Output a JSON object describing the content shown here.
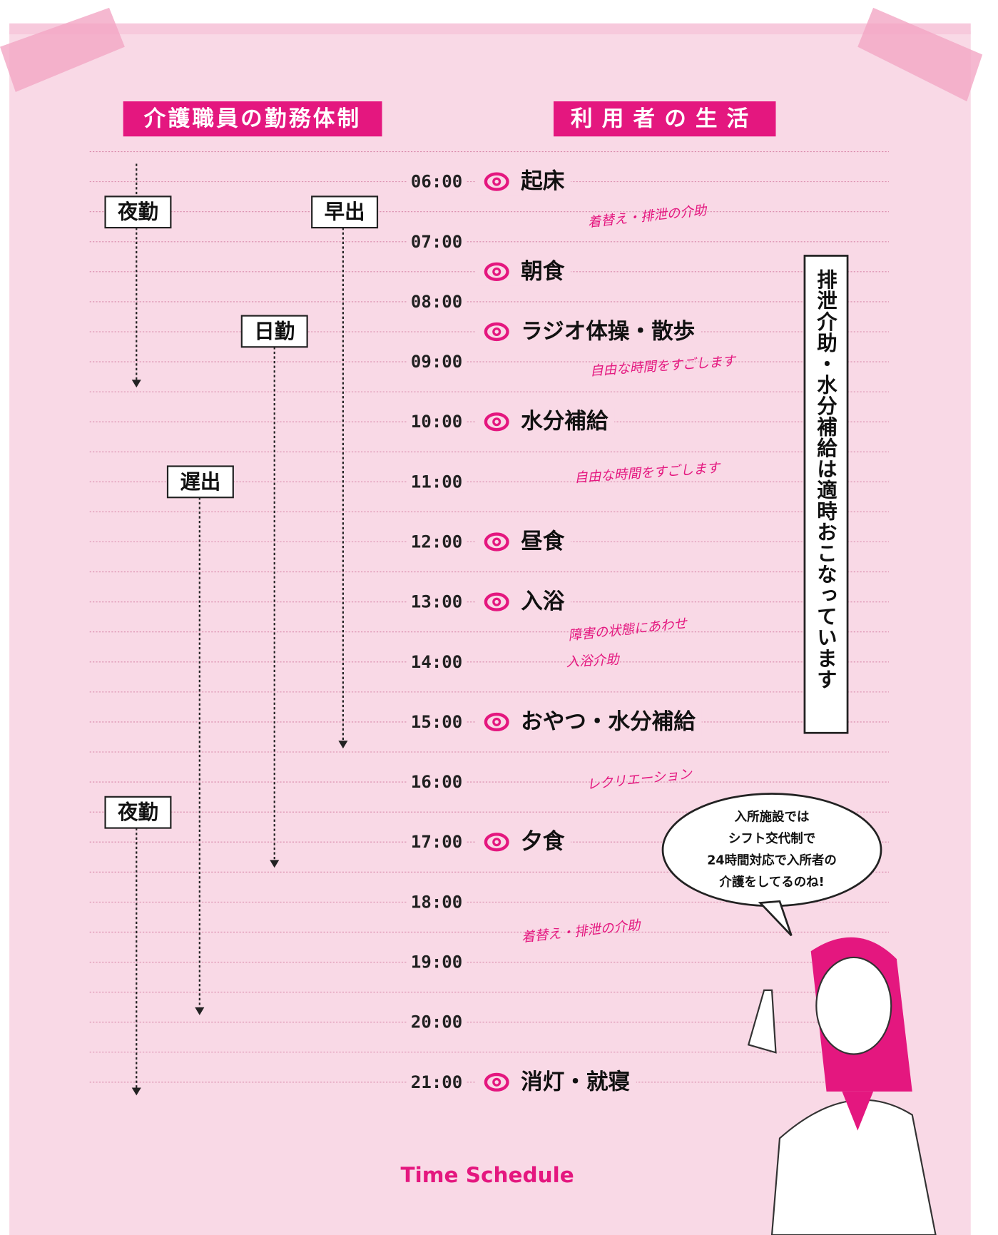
{
  "headers": {
    "staff": "介護職員の勤務体制",
    "residents": "利用者の生活"
  },
  "times": [
    "06:00",
    "07:00",
    "08:00",
    "09:00",
    "10:00",
    "11:00",
    "12:00",
    "13:00",
    "14:00",
    "15:00",
    "16:00",
    "17:00",
    "18:00",
    "19:00",
    "20:00",
    "21:00"
  ],
  "shifts": [
    "夜勤",
    "早出",
    "日勤",
    "遅出",
    "夜勤"
  ],
  "events": [
    "起床",
    "朝食",
    "ラジオ体操・散歩",
    "水分補給",
    "昼食",
    "入浴",
    "おやつ・水分補給",
    "夕食",
    "消灯・就寝"
  ],
  "notes": [
    "着替え・排泄の介助",
    "自由な時間をすごします",
    "自由な時間をすごします",
    "障害の状態にあわせ",
    "入浴介助",
    "レクリエーション",
    "着替え・排泄の介助"
  ],
  "side_note": "排泄介助・水分補給は適時おこなっています",
  "speech_bubble": [
    "入所施設では",
    "シフト交代制で",
    "24時間対応で入所者の",
    "介護をしてるのね!"
  ],
  "footer": "Time Schedule"
}
